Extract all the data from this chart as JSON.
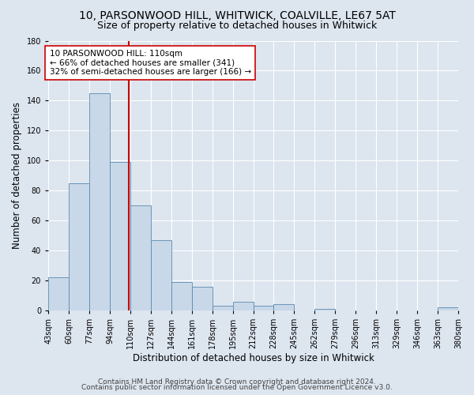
{
  "title": "10, PARSONWOOD HILL, WHITWICK, COALVILLE, LE67 5AT",
  "subtitle": "Size of property relative to detached houses in Whitwick",
  "xlabel": "Distribution of detached houses by size in Whitwick",
  "ylabel": "Number of detached properties",
  "bin_edges": [
    43,
    60,
    77,
    94,
    111,
    128,
    145,
    162,
    179,
    196,
    213,
    230,
    247,
    264,
    281,
    298,
    315,
    332,
    349,
    366,
    383
  ],
  "bin_heights": [
    22,
    85,
    145,
    99,
    70,
    47,
    19,
    16,
    3,
    6,
    3,
    4,
    0,
    1,
    0,
    0,
    0,
    0,
    0,
    2
  ],
  "bar_facecolor": "#c8d8e8",
  "bar_edgecolor": "#5a8ab0",
  "vline_x": 110,
  "vline_color": "#cc0000",
  "annotation_text": "10 PARSONWOOD HILL: 110sqm\n← 66% of detached houses are smaller (341)\n32% of semi-detached houses are larger (166) →",
  "annotation_box_edgecolor": "#cc0000",
  "annotation_box_facecolor": "#ffffff",
  "ylim": [
    0,
    180
  ],
  "yticks": [
    0,
    20,
    40,
    60,
    80,
    100,
    120,
    140,
    160,
    180
  ],
  "tick_labels": [
    "43sqm",
    "60sqm",
    "77sqm",
    "94sqm",
    "110sqm",
    "127sqm",
    "144sqm",
    "161sqm",
    "178sqm",
    "195sqm",
    "212sqm",
    "228sqm",
    "245sqm",
    "262sqm",
    "279sqm",
    "296sqm",
    "313sqm",
    "329sqm",
    "346sqm",
    "363sqm",
    "380sqm"
  ],
  "footer_line1": "Contains HM Land Registry data © Crown copyright and database right 2024.",
  "footer_line2": "Contains public sector information licensed under the Open Government Licence v3.0.",
  "background_color": "#dde5ef",
  "plot_background_color": "#dde5ef",
  "title_fontsize": 10,
  "subtitle_fontsize": 9,
  "axis_label_fontsize": 8.5,
  "tick_fontsize": 7,
  "footer_fontsize": 6.5,
  "annotation_fontsize": 7.5
}
